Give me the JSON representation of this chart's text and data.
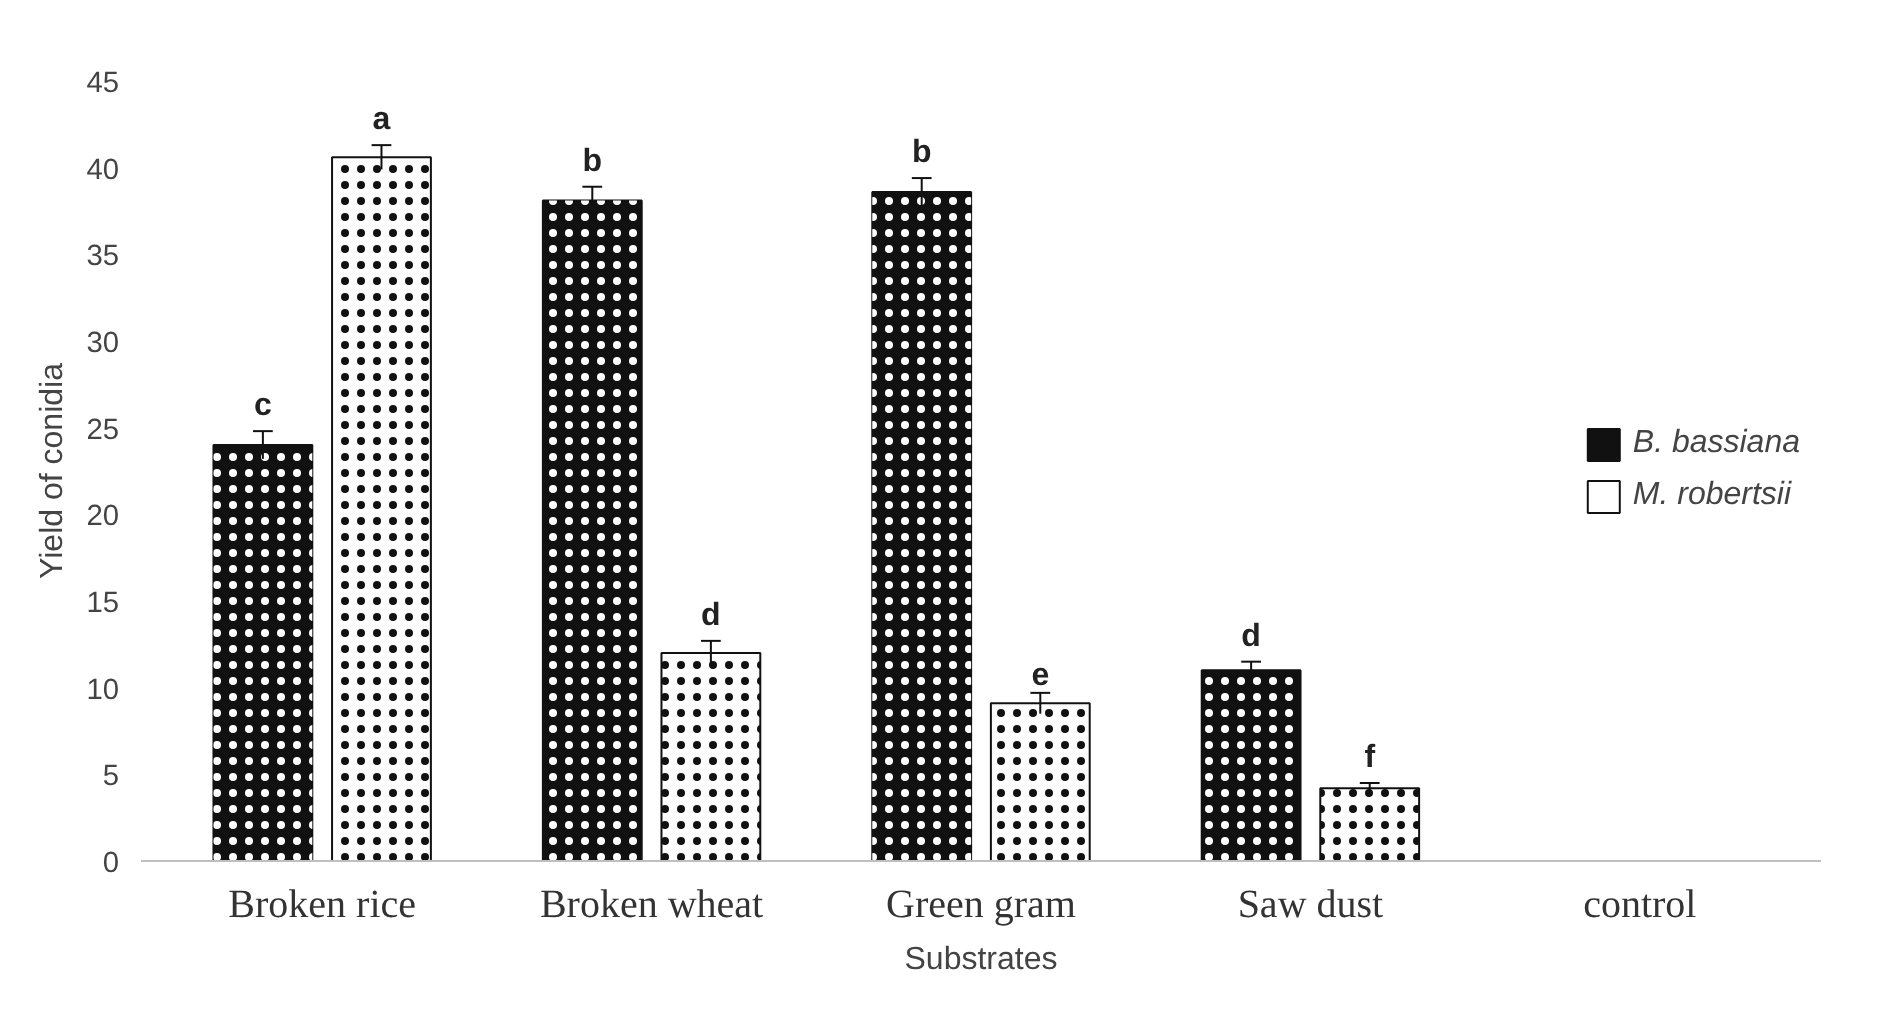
{
  "chart_data": {
    "type": "bar",
    "xlabel": "Substrates",
    "ylabel": "Yield of conidia",
    "categories": [
      "Broken rice",
      "Broken wheat",
      "Green gram",
      "Saw dust",
      "control"
    ],
    "series": [
      {
        "name": "B. bassiana",
        "color": "#111111",
        "values": [
          24.0,
          38.1,
          38.6,
          11.0,
          0
        ],
        "errors": [
          0.8,
          0.8,
          0.8,
          0.5,
          null
        ],
        "value_labels": [
          "c",
          "b",
          "b",
          "d",
          null
        ]
      },
      {
        "name": "M. robertsii",
        "color": "#ffffff",
        "values": [
          40.6,
          12.0,
          9.1,
          4.2,
          0
        ],
        "errors": [
          0.7,
          0.7,
          0.6,
          0.3,
          null
        ],
        "value_labels": [
          "a",
          "d",
          "e",
          "f",
          null
        ]
      }
    ],
    "ylim": [
      0,
      45
    ],
    "yticks": [
      0,
      5,
      10,
      15,
      20,
      25,
      30,
      35,
      40,
      45
    ],
    "grid": false,
    "legend": "right"
  }
}
